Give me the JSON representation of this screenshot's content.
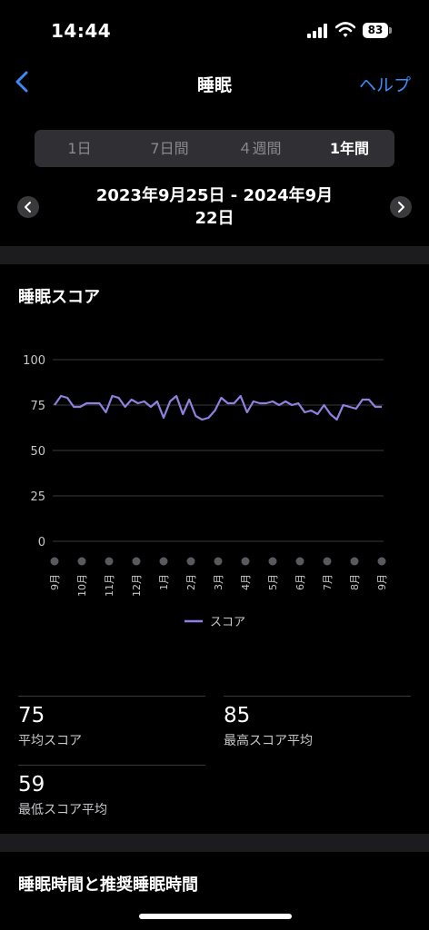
{
  "status_bar": {
    "time": "14:44",
    "battery": "83"
  },
  "nav": {
    "title": "睡眠",
    "help": "ヘルプ"
  },
  "segments": [
    {
      "label": "1日",
      "active": false
    },
    {
      "label": "7日間",
      "active": false
    },
    {
      "label": "４週間",
      "active": false
    },
    {
      "label": "1年間",
      "active": true
    }
  ],
  "date_range": {
    "line1": "2023年9月25日 - 2024年9月",
    "line2": "22日"
  },
  "score_section": {
    "title": "睡眠スコア"
  },
  "chart_data": {
    "type": "line",
    "title": "",
    "xlabel": "",
    "ylabel": "",
    "ylim": [
      0,
      100
    ],
    "yticks": [
      100,
      75,
      50,
      25,
      0
    ],
    "xticks": [
      "9月",
      "10月",
      "11月",
      "12月",
      "1月",
      "2月",
      "3月",
      "4月",
      "5月",
      "6月",
      "7月",
      "8月",
      "9月"
    ],
    "grid": true,
    "legend": "bottom-center",
    "color": "#8e82e0",
    "series": [
      {
        "name": "スコア",
        "values": [
          75,
          80,
          79,
          74,
          74,
          76,
          76,
          76,
          71,
          80,
          79,
          74,
          78,
          76,
          77,
          74,
          77,
          68,
          77,
          80,
          70,
          78,
          69,
          67,
          68,
          72,
          79,
          76,
          76,
          80,
          71,
          77,
          76,
          76,
          77,
          75,
          77,
          75,
          76,
          71,
          72,
          70,
          75,
          70,
          67,
          75,
          74,
          73,
          78,
          78,
          74,
          74
        ]
      }
    ]
  },
  "stats": [
    {
      "value": "75",
      "label": "平均スコア"
    },
    {
      "value": "85",
      "label": "最高スコア平均"
    },
    {
      "value": "59",
      "label": "最低スコア平均"
    }
  ],
  "section2": {
    "title": "睡眠時間と推奨睡眠時間"
  }
}
